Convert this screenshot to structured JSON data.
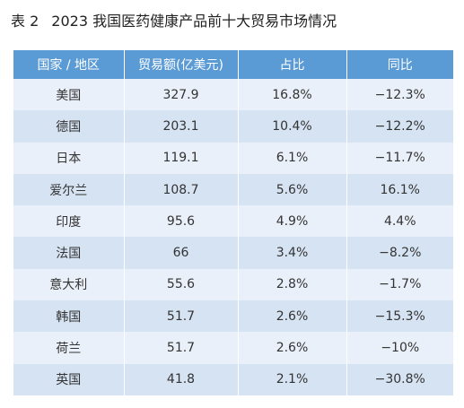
{
  "caption": {
    "number": "表 2",
    "title": "2023 我国医药健康产品前十大贸易市场情况"
  },
  "table": {
    "headers": [
      "国家 / 地区",
      "贸易额(亿美元)",
      "占比",
      "同比"
    ],
    "rows": [
      [
        "美国",
        "327.9",
        "16.8%",
        "−12.3%"
      ],
      [
        "德国",
        "203.1",
        "10.4%",
        "−12.2%"
      ],
      [
        "日本",
        "119.1",
        "6.1%",
        "−11.7%"
      ],
      [
        "爱尔兰",
        "108.7",
        "5.6%",
        "16.1%"
      ],
      [
        "印度",
        "95.6",
        "4.9%",
        "4.4%"
      ],
      [
        "法国",
        "66",
        "3.4%",
        "−8.2%"
      ],
      [
        "意大利",
        "55.6",
        "2.8%",
        "−1.7%"
      ],
      [
        "韩国",
        "51.7",
        "2.6%",
        "−15.3%"
      ],
      [
        "荷兰",
        "51.7",
        "2.6%",
        "−10%"
      ],
      [
        "英国",
        "41.8",
        "2.1%",
        "−30.8%"
      ]
    ]
  },
  "colors": {
    "header_bg": "#5b9bd5",
    "row_light": "#eaf0f9",
    "row_dark": "#d6e3f3"
  }
}
